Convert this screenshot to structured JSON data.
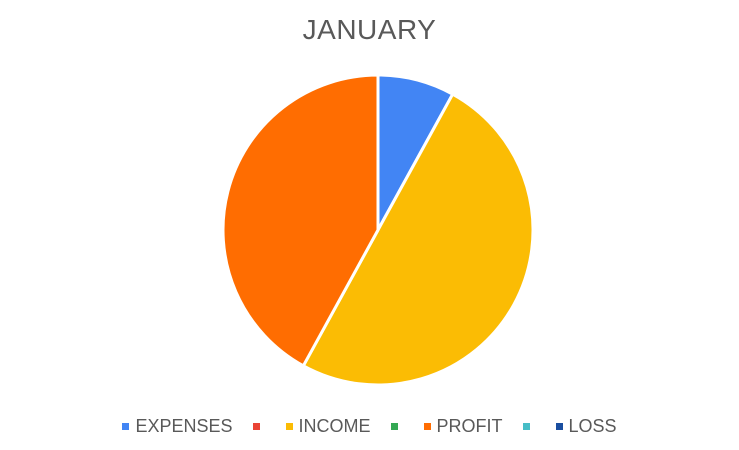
{
  "chart_data": {
    "type": "pie",
    "title": "JANUARY",
    "categories": [
      "EXPENSES",
      "",
      "INCOME",
      "",
      "PROFIT",
      "",
      "LOSS"
    ],
    "values": [
      8,
      0,
      50,
      0,
      42,
      0,
      0
    ],
    "colors": [
      "#4285f4",
      "#ea4335",
      "#fbbc04",
      "#34a853",
      "#ff6d01",
      "#46bdc6",
      "#1a4ea0"
    ],
    "legend_position": "bottom"
  }
}
